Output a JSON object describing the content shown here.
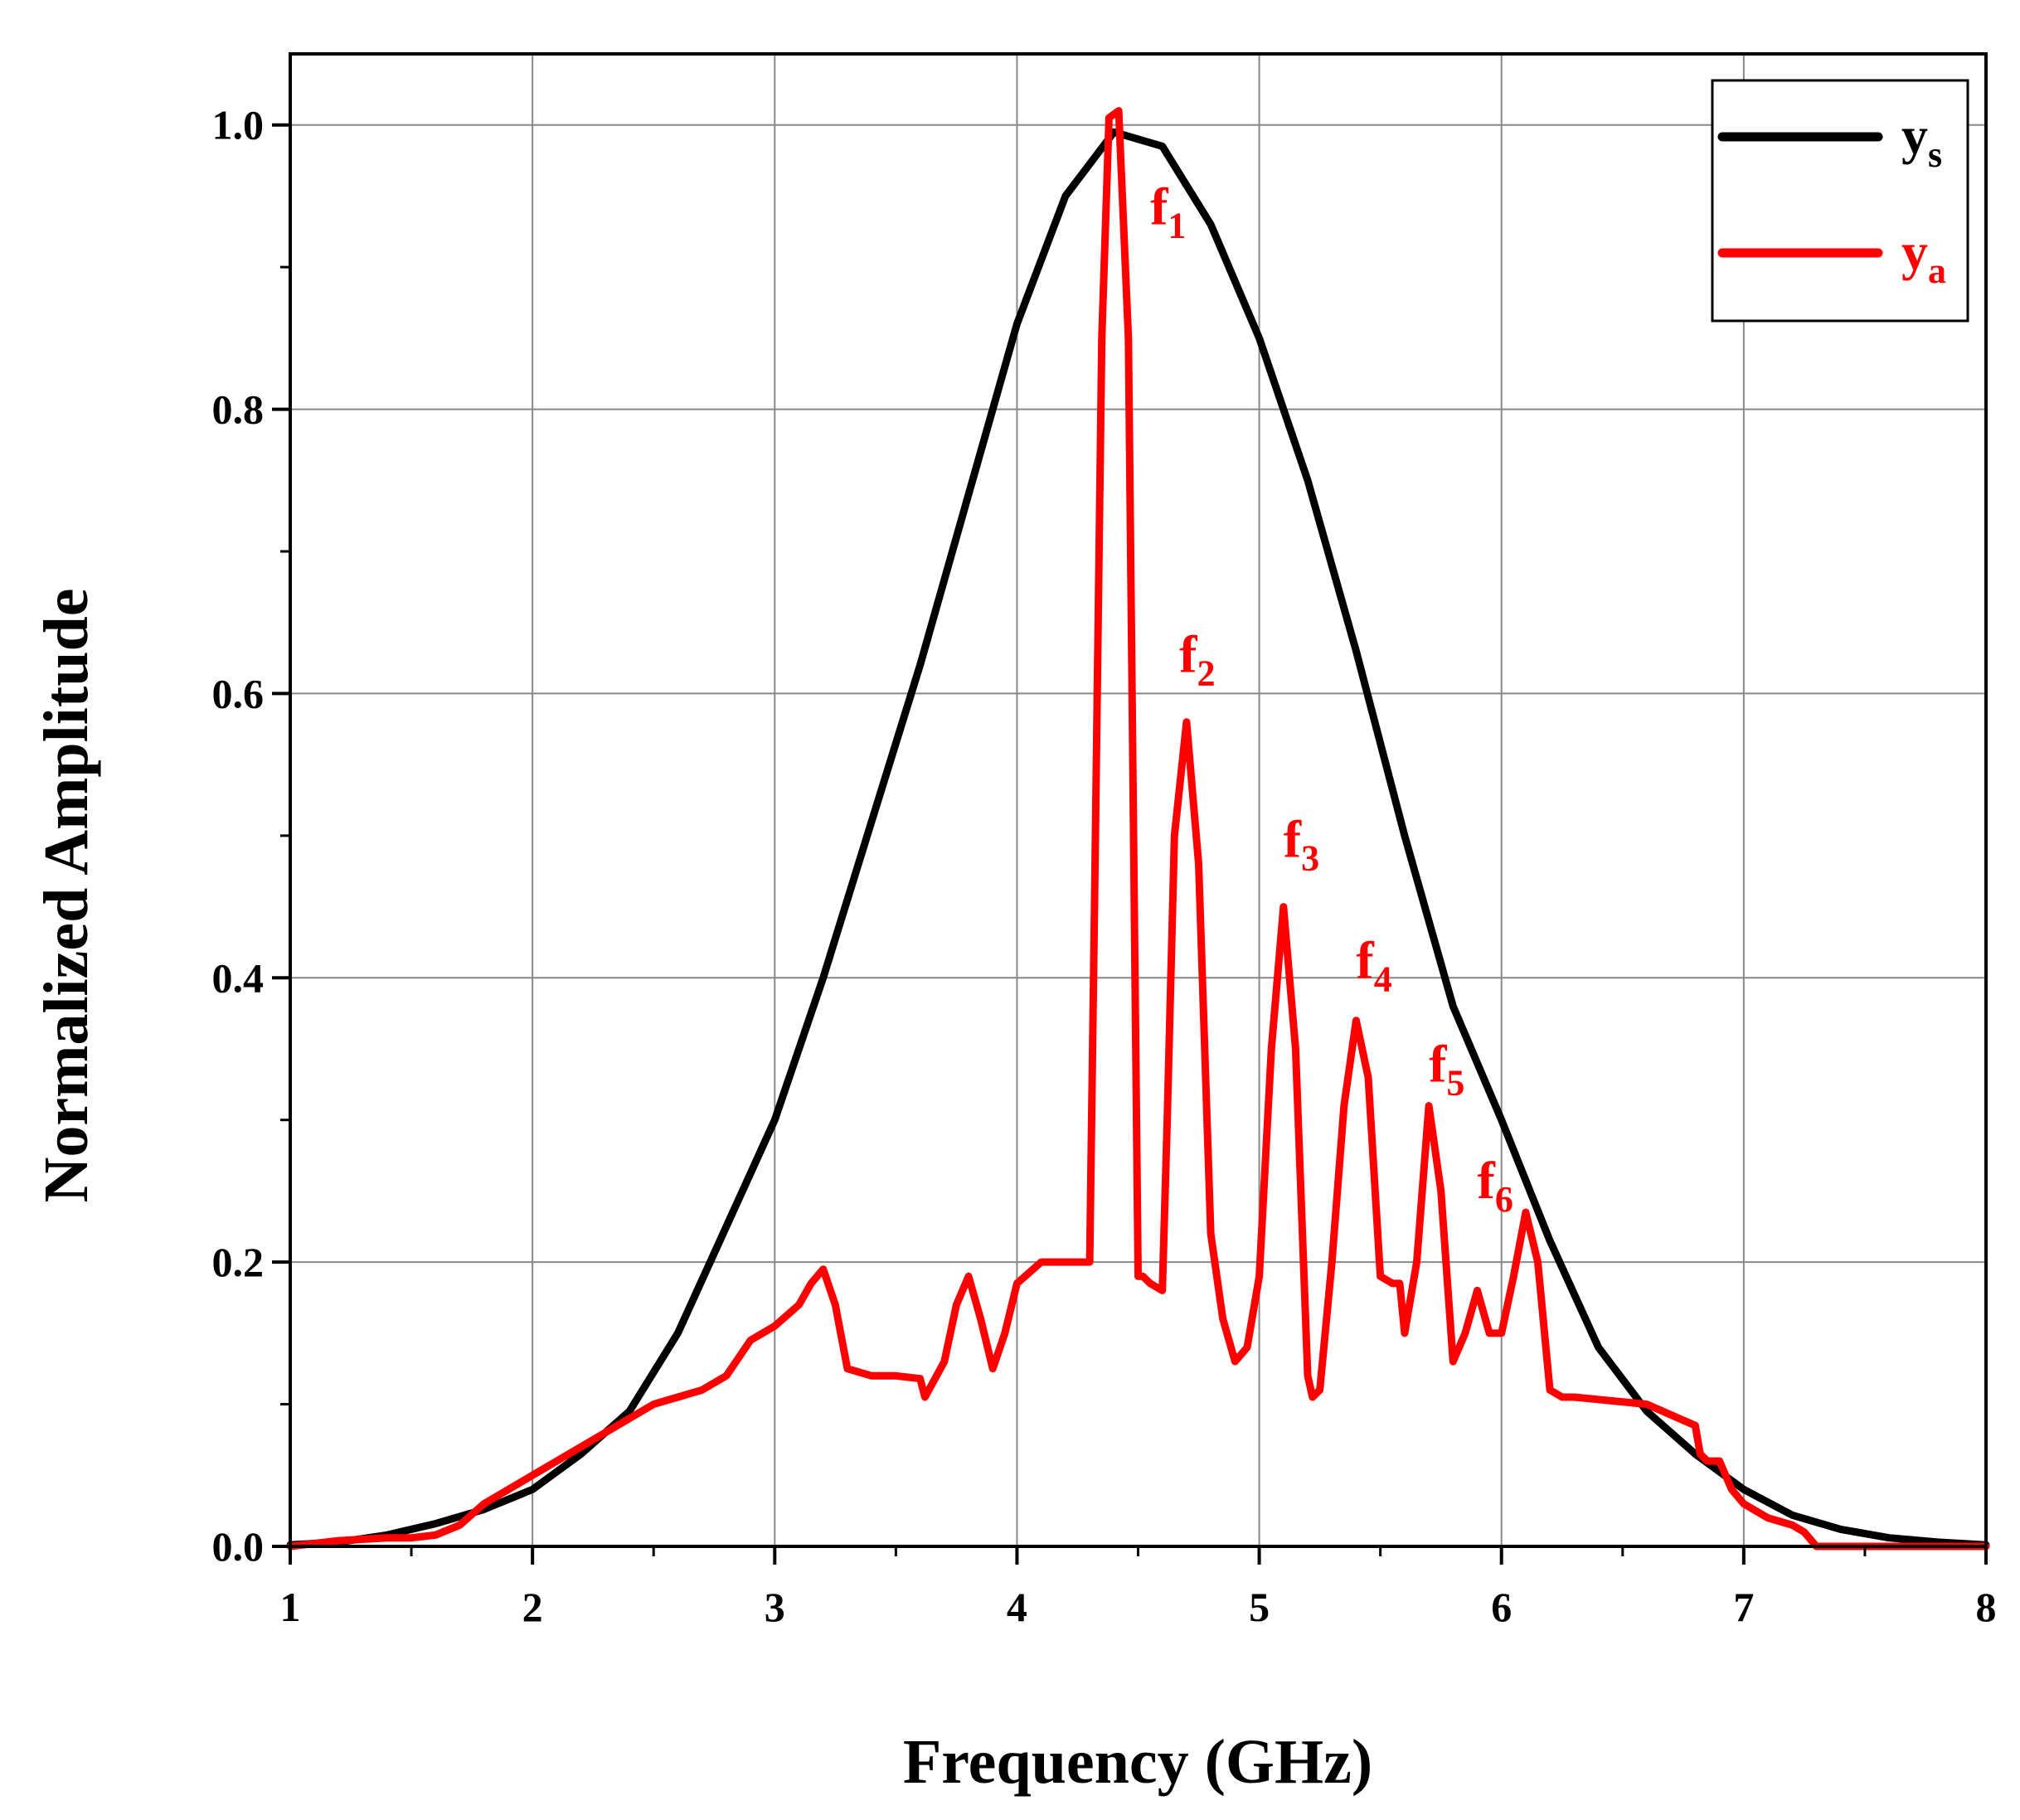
{
  "chart_data": {
    "type": "line",
    "title": "",
    "xlabel": "Frequency (GHz)",
    "ylabel": "Normalized Amplitude",
    "xlim": [
      1,
      8
    ],
    "ylim": [
      0,
      1.05
    ],
    "grid": true,
    "x_ticks": [
      "1",
      "2",
      "3",
      "4",
      "5",
      "6",
      "7",
      "8"
    ],
    "y_ticks": [
      "0.0",
      "0.2",
      "0.4",
      "0.6",
      "0.8",
      "1.0"
    ],
    "legend_position": "top-right",
    "series": [
      {
        "name": "ys",
        "name_base": "y",
        "name_sub": "s",
        "color": "#000000",
        "x": [
          1.0,
          1.2,
          1.4,
          1.6,
          1.8,
          2.0,
          2.2,
          2.4,
          2.6,
          2.8,
          3.0,
          3.2,
          3.4,
          3.6,
          3.8,
          4.0,
          4.2,
          4.4,
          4.6,
          4.8,
          5.0,
          5.2,
          5.4,
          5.6,
          5.8,
          6.0,
          6.2,
          6.4,
          6.6,
          6.8,
          7.0,
          7.2,
          7.4,
          7.6,
          7.8,
          8.0
        ],
        "y": [
          0.001,
          0.003,
          0.008,
          0.016,
          0.026,
          0.04,
          0.065,
          0.095,
          0.15,
          0.225,
          0.3,
          0.4,
          0.51,
          0.62,
          0.74,
          0.86,
          0.95,
          0.995,
          0.985,
          0.93,
          0.85,
          0.75,
          0.63,
          0.5,
          0.38,
          0.3,
          0.215,
          0.14,
          0.095,
          0.065,
          0.04,
          0.022,
          0.012,
          0.006,
          0.003,
          0.001
        ]
      },
      {
        "name": "ya",
        "name_base": "y",
        "name_sub": "a",
        "color": "#ff0000",
        "x": [
          1.0,
          1.2,
          1.4,
          1.5,
          1.6,
          1.7,
          1.8,
          2.0,
          2.1,
          2.2,
          2.3,
          2.4,
          2.5,
          2.6,
          2.7,
          2.8,
          2.9,
          3.0,
          3.1,
          3.15,
          3.2,
          3.25,
          3.3,
          3.4,
          3.5,
          3.6,
          3.62,
          3.7,
          3.75,
          3.8,
          3.85,
          3.9,
          3.95,
          4.0,
          4.1,
          4.2,
          4.3,
          4.32,
          4.35,
          4.38,
          4.42,
          4.46,
          4.5,
          4.52,
          4.55,
          4.6,
          4.62,
          4.65,
          4.7,
          4.75,
          4.8,
          4.85,
          4.9,
          4.95,
          5.0,
          5.05,
          5.1,
          5.15,
          5.2,
          5.22,
          5.25,
          5.3,
          5.35,
          5.4,
          5.45,
          5.5,
          5.55,
          5.58,
          5.6,
          5.65,
          5.7,
          5.75,
          5.8,
          5.85,
          5.9,
          5.95,
          6.0,
          6.05,
          6.1,
          6.15,
          6.2,
          6.25,
          6.3,
          6.6,
          6.8,
          6.82,
          6.85,
          6.9,
          6.95,
          7.0,
          7.1,
          7.2,
          7.25,
          7.3,
          7.4,
          7.5,
          7.6,
          7.7,
          7.8,
          7.9,
          8.0
        ],
        "y": [
          0.0,
          0.004,
          0.006,
          0.006,
          0.008,
          0.015,
          0.03,
          0.05,
          0.06,
          0.07,
          0.08,
          0.09,
          0.1,
          0.105,
          0.11,
          0.12,
          0.145,
          0.155,
          0.17,
          0.185,
          0.195,
          0.17,
          0.125,
          0.12,
          0.12,
          0.118,
          0.105,
          0.13,
          0.17,
          0.19,
          0.16,
          0.125,
          0.15,
          0.185,
          0.2,
          0.2,
          0.2,
          0.45,
          0.85,
          1.005,
          1.01,
          0.85,
          0.19,
          0.19,
          0.185,
          0.18,
          0.3,
          0.5,
          0.58,
          0.48,
          0.22,
          0.16,
          0.13,
          0.14,
          0.19,
          0.35,
          0.45,
          0.35,
          0.12,
          0.105,
          0.11,
          0.2,
          0.31,
          0.37,
          0.33,
          0.19,
          0.185,
          0.185,
          0.15,
          0.2,
          0.31,
          0.25,
          0.13,
          0.15,
          0.18,
          0.15,
          0.15,
          0.19,
          0.235,
          0.2,
          0.11,
          0.105,
          0.105,
          0.1,
          0.085,
          0.065,
          0.06,
          0.06,
          0.04,
          0.03,
          0.02,
          0.015,
          0.01,
          0.0,
          0.0,
          0.0,
          0.0,
          0.0,
          0.0,
          0.0,
          0.0
        ]
      }
    ],
    "annotations": [
      {
        "base": "f",
        "sub": "1",
        "x": 4.55,
        "y": 0.93
      },
      {
        "base": "f",
        "sub": "2",
        "x": 4.67,
        "y": 0.615
      },
      {
        "base": "f",
        "sub": "3",
        "x": 5.1,
        "y": 0.485
      },
      {
        "base": "f",
        "sub": "4",
        "x": 5.4,
        "y": 0.4
      },
      {
        "base": "f",
        "sub": "5",
        "x": 5.7,
        "y": 0.327
      },
      {
        "base": "f",
        "sub": "6",
        "x": 5.9,
        "y": 0.245
      }
    ]
  }
}
